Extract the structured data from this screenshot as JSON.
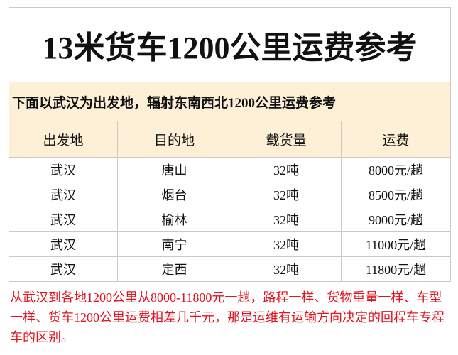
{
  "title": "13米货车1200公里运费参考",
  "subtitle": "下面以武汉为出发地，辐射东南西北1200公里运费参考",
  "table": {
    "headers": [
      "出发地",
      "目的地",
      "载货量",
      "运费"
    ],
    "rows": [
      [
        "武汉",
        "唐山",
        "32吨",
        "8000元/趟"
      ],
      [
        "武汉",
        "烟台",
        "32吨",
        "8500元/趟"
      ],
      [
        "武汉",
        "榆林",
        "32吨",
        "9000元/趟"
      ],
      [
        "武汉",
        "南宁",
        "32吨",
        "11000元/趟"
      ],
      [
        "武汉",
        "定西",
        "32吨",
        "11800元/趟"
      ]
    ]
  },
  "note": "从武汉到各地1200公里从8000-11800元一趟，路程一样、货物重量一样、车型一样、货车1200公里运费相差几千元，那是运维有运输方向决定的回程车专程车的区别。"
}
